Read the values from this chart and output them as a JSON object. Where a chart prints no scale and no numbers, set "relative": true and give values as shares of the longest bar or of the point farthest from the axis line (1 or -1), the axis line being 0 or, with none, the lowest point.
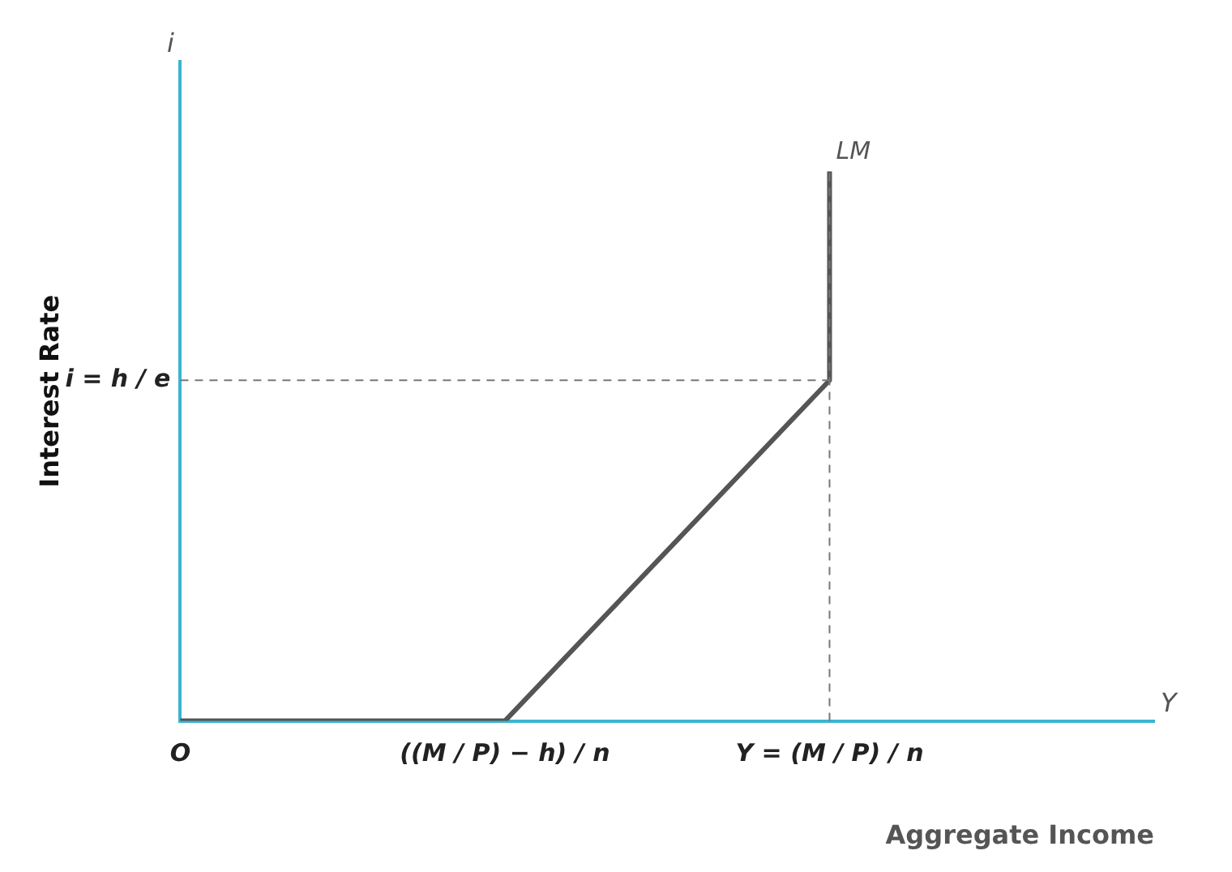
{
  "chart_data": {
    "type": "line",
    "relative": true,
    "xlabel": "Aggregate Income",
    "ylabel": "Interest Rate",
    "categories": [
      "O",
      "((M / P) − h) / n",
      "Y = (M / P) / n",
      null
    ],
    "series": [
      {
        "name": "LM",
        "color": "#555555",
        "x": [
          "O",
          "((M / P) − h) / n",
          "Y = (M / P) / n",
          "Y = (M / P) / n"
        ],
        "values": [
          0,
          0,
          0.62,
          1
        ]
      }
    ],
    "ref_lines": [
      {
        "axis": "y",
        "value": 0.62,
        "label": "i = h / e",
        "color": "#777777",
        "line_style": "dashed"
      },
      {
        "axis": "x",
        "value": "Y = (M / P) / n",
        "color": "#777777",
        "line_style": "dashed"
      }
    ],
    "annotations": [
      "i",
      "Y"
    ],
    "grid": false,
    "legend": false,
    "marker": "none",
    "line_style": "solid"
  }
}
